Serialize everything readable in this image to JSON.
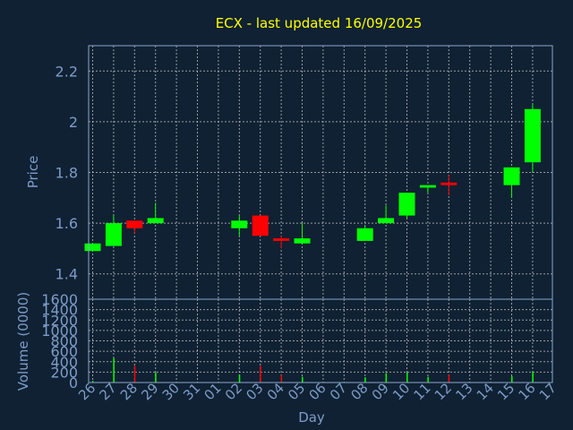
{
  "chart_data": [
    {
      "type": "candlestick",
      "title": "ECX - last updated 16/09/2025",
      "ylabel": "Price",
      "ylim": [
        1.3,
        2.3
      ],
      "yticks": [
        1.4,
        1.6,
        1.8,
        2,
        2.2
      ],
      "grid": true,
      "x": [
        "26",
        "27",
        "28",
        "29",
        "30",
        "31",
        "01",
        "02",
        "03",
        "04",
        "05",
        "06",
        "07",
        "08",
        "09",
        "10",
        "11",
        "12",
        "13",
        "14",
        "15",
        "16",
        "17"
      ],
      "candles": [
        {
          "day": "26",
          "open": 1.49,
          "close": 1.52,
          "high": 1.52,
          "low": 1.49
        },
        {
          "day": "27",
          "open": 1.51,
          "close": 1.6,
          "high": 1.63,
          "low": 1.51
        },
        {
          "day": "28",
          "open": 1.61,
          "close": 1.58,
          "high": 1.61,
          "low": 1.56
        },
        {
          "day": "29",
          "open": 1.6,
          "close": 1.62,
          "high": 1.68,
          "low": 1.6
        },
        {
          "day": "02",
          "open": 1.58,
          "close": 1.61,
          "high": 1.63,
          "low": 1.55
        },
        {
          "day": "03",
          "open": 1.63,
          "close": 1.55,
          "high": 1.63,
          "low": 1.55
        },
        {
          "day": "04",
          "open": 1.54,
          "close": 1.53,
          "high": 1.55,
          "low": 1.5
        },
        {
          "day": "05",
          "open": 1.52,
          "close": 1.54,
          "high": 1.6,
          "low": 1.52
        },
        {
          "day": "08",
          "open": 1.53,
          "close": 1.58,
          "high": 1.59,
          "low": 1.53
        },
        {
          "day": "09",
          "open": 1.6,
          "close": 1.62,
          "high": 1.67,
          "low": 1.6
        },
        {
          "day": "10",
          "open": 1.63,
          "close": 1.72,
          "high": 1.72,
          "low": 1.62
        },
        {
          "day": "11",
          "open": 1.74,
          "close": 1.75,
          "high": 1.75,
          "low": 1.72
        },
        {
          "day": "12",
          "open": 1.76,
          "close": 1.75,
          "high": 1.79,
          "low": 1.71
        },
        {
          "day": "15",
          "open": 1.75,
          "close": 1.82,
          "high": 1.82,
          "low": 1.7
        },
        {
          "day": "16",
          "open": 1.84,
          "close": 2.05,
          "high": 2.07,
          "low": 1.8
        }
      ],
      "up_color": "#00ff00",
      "down_color": "#ff0000"
    },
    {
      "type": "bar",
      "ylabel": "Volume (0000)",
      "xlabel": "Day",
      "ylim": [
        0,
        1600
      ],
      "yticks": [
        0,
        200,
        400,
        600,
        800,
        1000,
        1200,
        1400,
        1600
      ],
      "grid": true,
      "x": [
        "26",
        "27",
        "28",
        "29",
        "30",
        "31",
        "01",
        "02",
        "03",
        "04",
        "05",
        "06",
        "07",
        "08",
        "09",
        "10",
        "11",
        "12",
        "13",
        "14",
        "15",
        "16",
        "17"
      ],
      "bars": [
        {
          "day": "26",
          "value": 30,
          "dir": "up"
        },
        {
          "day": "27",
          "value": 470,
          "dir": "up"
        },
        {
          "day": "28",
          "value": 320,
          "dir": "down"
        },
        {
          "day": "29",
          "value": 190,
          "dir": "up"
        },
        {
          "day": "02",
          "value": 150,
          "dir": "up"
        },
        {
          "day": "03",
          "value": 320,
          "dir": "down"
        },
        {
          "day": "04",
          "value": 140,
          "dir": "down"
        },
        {
          "day": "05",
          "value": 110,
          "dir": "up"
        },
        {
          "day": "08",
          "value": 100,
          "dir": "up"
        },
        {
          "day": "09",
          "value": 180,
          "dir": "up"
        },
        {
          "day": "10",
          "value": 190,
          "dir": "up"
        },
        {
          "day": "11",
          "value": 110,
          "dir": "up"
        },
        {
          "day": "12",
          "value": 150,
          "dir": "down"
        },
        {
          "day": "15",
          "value": 120,
          "dir": "up"
        },
        {
          "day": "16",
          "value": 210,
          "dir": "up"
        }
      ],
      "up_color": "#00ff00",
      "down_color": "#ff0000"
    }
  ]
}
